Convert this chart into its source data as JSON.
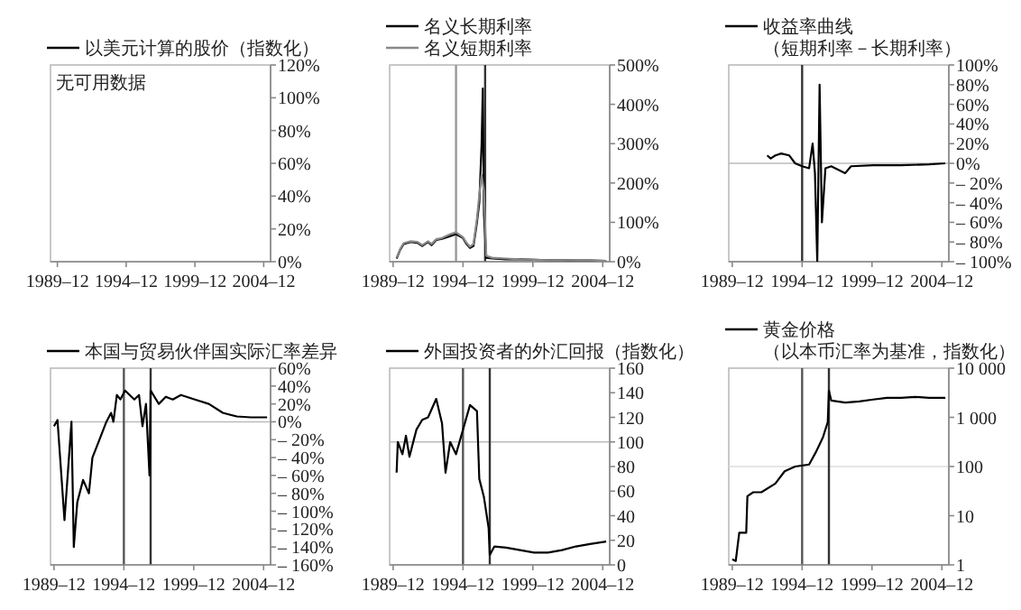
{
  "chart_data": [
    {
      "type": "line",
      "legend": "top",
      "annotations": [
        "无可用数据"
      ],
      "series": [
        {
          "name": "以美元计算的股价（指数化）",
          "color": "#000000",
          "values": [
            null,
            null,
            null,
            null
          ]
        }
      ],
      "categories": [
        "1989–12",
        "1994–12",
        "1999–12",
        "2004–12"
      ],
      "ylim": [
        0,
        120
      ],
      "yticks": [
        {
          "value": 0,
          "label": "0%"
        },
        {
          "value": 20,
          "label": "20%"
        },
        {
          "value": 40,
          "label": "40%"
        },
        {
          "value": 60,
          "label": "60%"
        },
        {
          "value": 80,
          "label": "80%"
        },
        {
          "value": 100,
          "label": "100%"
        },
        {
          "value": 120,
          "label": "120%"
        }
      ]
    },
    {
      "type": "line",
      "legend": "top",
      "series": [
        {
          "name": "名义长期利率",
          "color": "#000000",
          "x": [
            "1990-03",
            "1990-06",
            "1990-09",
            "1991-03",
            "1991-09",
            "1992-01",
            "1992-06",
            "1992-09",
            "1993-01",
            "1993-06",
            "1994-01",
            "1994-06",
            "1994-12",
            "1995-03",
            "1995-06",
            "1995-09",
            "1995-12",
            "1996-02",
            "1996-04",
            "1996-05",
            "1996-06",
            "1996-08",
            "1997-01",
            "1998-01",
            "1999-01",
            "2000-01",
            "2001-01",
            "2002-01",
            "2003-01",
            "2004-01",
            "2005-03"
          ],
          "values": [
            8,
            30,
            45,
            50,
            48,
            40,
            50,
            42,
            55,
            58,
            65,
            70,
            60,
            45,
            35,
            40,
            100,
            150,
            300,
            440,
            120,
            10,
            8,
            6,
            6,
            5,
            4,
            4,
            3,
            3,
            2
          ]
        },
        {
          "name": "名义短期利率",
          "color": "#888888",
          "x": [
            "1990-03",
            "1990-06",
            "1990-09",
            "1991-03",
            "1991-09",
            "1992-01",
            "1992-06",
            "1992-09",
            "1993-01",
            "1993-06",
            "1994-01",
            "1994-06",
            "1994-12",
            "1995-03",
            "1995-06",
            "1995-09",
            "1995-12",
            "1996-02",
            "1996-04",
            "1996-05",
            "1996-06",
            "1996-08",
            "1997-01",
            "1998-01",
            "1999-01",
            "2000-01",
            "2001-01",
            "2002-01",
            "2003-01",
            "2004-01",
            "2005-03"
          ],
          "values": [
            10,
            32,
            47,
            52,
            50,
            42,
            52,
            45,
            57,
            60,
            70,
            75,
            62,
            48,
            38,
            45,
            110,
            170,
            220,
            200,
            180,
            15,
            10,
            8,
            6,
            5,
            4,
            4,
            3,
            3,
            2
          ]
        }
      ],
      "ref_lines": [
        {
          "axis": "x",
          "value": "1994-06",
          "color": "#999999"
        },
        {
          "axis": "x",
          "value": "1996-07",
          "color": "#333333"
        }
      ],
      "xlim": [
        "1989-09",
        "2005-06"
      ],
      "xticks": [
        {
          "value": "1989-12",
          "label": "1989–12"
        },
        {
          "value": "1994-12",
          "label": "1994–12"
        },
        {
          "value": "1999-12",
          "label": "1999–12"
        },
        {
          "value": "2004-12",
          "label": "2004–12"
        }
      ],
      "ylim": [
        0,
        500
      ],
      "yticks": [
        {
          "value": 0,
          "label": "0%"
        },
        {
          "value": 100,
          "label": "100%"
        },
        {
          "value": 200,
          "label": "200%"
        },
        {
          "value": 300,
          "label": "300%"
        },
        {
          "value": 400,
          "label": "400%"
        },
        {
          "value": 500,
          "label": "500%"
        }
      ]
    },
    {
      "type": "line",
      "legend": "top",
      "series": [
        {
          "name": "收益率曲线（短期利率－长期利率）",
          "color": "#000000",
          "x": [
            "1992-06",
            "1992-09",
            "1993-01",
            "1993-06",
            "1994-01",
            "1994-06",
            "1994-12",
            "1995-06",
            "1995-09",
            "1995-11",
            "1996-01",
            "1996-03",
            "1996-05",
            "1996-08",
            "1997-01",
            "1998-01",
            "1998-06",
            "2000-01",
            "2002-01",
            "2004-01",
            "2005-03"
          ],
          "values": [
            8,
            5,
            8,
            10,
            8,
            0,
            -3,
            -5,
            20,
            -10,
            -100,
            80,
            -60,
            -5,
            -3,
            -10,
            -3,
            -2,
            -2,
            -1,
            0
          ]
        }
      ],
      "ref_lines": [
        {
          "axis": "y",
          "value": 0,
          "color": "#bbbbbb"
        },
        {
          "axis": "x",
          "value": "1994-12",
          "color": "#333333"
        }
      ],
      "xlim": [
        "1989-09",
        "2005-06"
      ],
      "xticks": [
        {
          "value": "1989-12",
          "label": "1989–12"
        },
        {
          "value": "1994-12",
          "label": "1994–12"
        },
        {
          "value": "1999-12",
          "label": "1999–12"
        },
        {
          "value": "2004-12",
          "label": "2004–12"
        }
      ],
      "ylim": [
        -100,
        100
      ],
      "yticks": [
        {
          "value": -100,
          "label": "– 100%"
        },
        {
          "value": -80,
          "label": "– 80%"
        },
        {
          "value": -60,
          "label": "– 60%"
        },
        {
          "value": -40,
          "label": "– 40%"
        },
        {
          "value": -20,
          "label": "– 20%"
        },
        {
          "value": 0,
          "label": "0%"
        },
        {
          "value": 20,
          "label": "20%"
        },
        {
          "value": 40,
          "label": "40%"
        },
        {
          "value": 60,
          "label": "60%"
        },
        {
          "value": 80,
          "label": "80%"
        },
        {
          "value": 100,
          "label": "100%"
        }
      ]
    },
    {
      "type": "line",
      "legend": "top",
      "series": [
        {
          "name": "本国与贸易伙伴国实际汇率差异",
          "color": "#000000",
          "x": [
            "1989-12",
            "1990-03",
            "1990-09",
            "1991-03",
            "1991-05",
            "1991-08",
            "1992-01",
            "1992-06",
            "1992-09",
            "1993-03",
            "1993-09",
            "1994-01",
            "1994-03",
            "1994-06",
            "1994-09",
            "1995-01",
            "1995-09",
            "1996-01",
            "1996-04",
            "1996-07",
            "1996-10",
            "1996-11",
            "1997-06",
            "1997-12",
            "1998-06",
            "1999-01",
            "2000-01",
            "2001-01",
            "2002-01",
            "2003-01",
            "2004-01",
            "2005-03"
          ],
          "values": [
            -5,
            2,
            -110,
            0,
            -140,
            -90,
            -65,
            -80,
            -40,
            -20,
            0,
            10,
            0,
            30,
            25,
            35,
            25,
            30,
            -5,
            20,
            -60,
            35,
            20,
            28,
            25,
            30,
            25,
            20,
            10,
            6,
            5,
            5
          ]
        }
      ],
      "ref_lines": [
        {
          "axis": "y",
          "value": 0,
          "color": "#bbbbbb"
        },
        {
          "axis": "x",
          "value": "1994-12",
          "color": "#555555"
        },
        {
          "axis": "x",
          "value": "1996-11",
          "color": "#333333"
        }
      ],
      "xlim": [
        "1989-09",
        "2005-06"
      ],
      "xticks": [
        {
          "value": "1989-12",
          "label": "1989–12"
        },
        {
          "value": "1994-12",
          "label": "1994–12"
        },
        {
          "value": "1999-12",
          "label": "1999–12"
        },
        {
          "value": "2004-12",
          "label": "2004–12"
        }
      ],
      "ylim": [
        -160,
        60
      ],
      "yticks": [
        {
          "value": -160,
          "label": "– 160%"
        },
        {
          "value": -140,
          "label": "– 140%"
        },
        {
          "value": -120,
          "label": "– 120%"
        },
        {
          "value": -100,
          "label": "– 100%"
        },
        {
          "value": -80,
          "label": "– 80%"
        },
        {
          "value": -60,
          "label": "– 60%"
        },
        {
          "value": -40,
          "label": "– 40%"
        },
        {
          "value": -20,
          "label": "– 20%"
        },
        {
          "value": 0,
          "label": "0%"
        },
        {
          "value": 20,
          "label": "20%"
        },
        {
          "value": 40,
          "label": "40%"
        },
        {
          "value": 60,
          "label": "60%"
        }
      ]
    },
    {
      "type": "line",
      "legend": "top",
      "series": [
        {
          "name": "外国投资者的外汇回报（指数化）",
          "color": "#000000",
          "x": [
            "1990-03",
            "1990-04",
            "1990-08",
            "1990-11",
            "1991-02",
            "1991-08",
            "1992-01",
            "1992-06",
            "1993-01",
            "1993-06",
            "1993-09",
            "1994-01",
            "1994-06",
            "1994-12",
            "1995-06",
            "1995-12",
            "1996-02",
            "1996-06",
            "1996-10",
            "1996-11",
            "1997-03",
            "1998-01",
            "1999-01",
            "2000-01",
            "2001-01",
            "2002-01",
            "2003-01",
            "2004-01",
            "2005-03"
          ],
          "values": [
            75,
            100,
            90,
            105,
            88,
            110,
            118,
            120,
            135,
            115,
            75,
            100,
            90,
            110,
            130,
            125,
            70,
            55,
            30,
            8,
            15,
            14,
            12,
            10,
            10,
            12,
            15,
            17,
            19
          ]
        }
      ],
      "ref_lines": [
        {
          "axis": "y",
          "value": 100,
          "color": "#bbbbbb"
        },
        {
          "axis": "x",
          "value": "1994-12",
          "color": "#555555"
        },
        {
          "axis": "x",
          "value": "1996-11",
          "color": "#333333"
        }
      ],
      "xlim": [
        "1989-09",
        "2005-06"
      ],
      "xticks": [
        {
          "value": "1989-12",
          "label": "1989–12"
        },
        {
          "value": "1994-12",
          "label": "1994–12"
        },
        {
          "value": "1999-12",
          "label": "1999–12"
        },
        {
          "value": "2004-12",
          "label": "2004–12"
        }
      ],
      "ylim": [
        0,
        160
      ],
      "yticks": [
        0,
        20,
        40,
        60,
        80,
        100,
        120,
        140,
        160
      ]
    },
    {
      "type": "line",
      "legend": "top",
      "log": true,
      "series": [
        {
          "name": "黄金价格（以本币汇率为基准，指数化）",
          "color": "#000000",
          "x": [
            "1989-12",
            "1990-03",
            "1990-06",
            "1990-12",
            "1991-01",
            "1991-06",
            "1992-01",
            "1993-01",
            "1993-09",
            "1994-06",
            "1995-06",
            "1995-12",
            "1996-06",
            "1996-10",
            "1996-11",
            "1997-01",
            "1998-01",
            "1999-01",
            "2000-01",
            "2001-01",
            "2002-01",
            "2003-01",
            "2004-01",
            "2005-03"
          ],
          "values": [
            1.3,
            1.2,
            4.5,
            4.5,
            25,
            30,
            30,
            45,
            80,
            100,
            110,
            200,
            400,
            800,
            3500,
            2200,
            2000,
            2100,
            2300,
            2500,
            2500,
            2600,
            2500,
            2500
          ]
        }
      ],
      "ref_lines": [
        {
          "axis": "y",
          "value": 100,
          "color": "#dddddd"
        },
        {
          "axis": "x",
          "value": "1994-12",
          "color": "#555555"
        },
        {
          "axis": "x",
          "value": "1996-11",
          "color": "#333333"
        }
      ],
      "xlim": [
        "1989-09",
        "2005-06"
      ],
      "xticks": [
        {
          "value": "1989-12",
          "label": "1989–12"
        },
        {
          "value": "1994-12",
          "label": "1994–12"
        },
        {
          "value": "1999-12",
          "label": "1999–12"
        },
        {
          "value": "2004-12",
          "label": "2004–12"
        }
      ],
      "ylim": [
        1,
        10000
      ],
      "yticks": [
        1,
        10,
        100,
        {
          "value": 1000,
          "label": "1 000"
        },
        {
          "value": 10000,
          "label": "10 000"
        }
      ]
    }
  ]
}
